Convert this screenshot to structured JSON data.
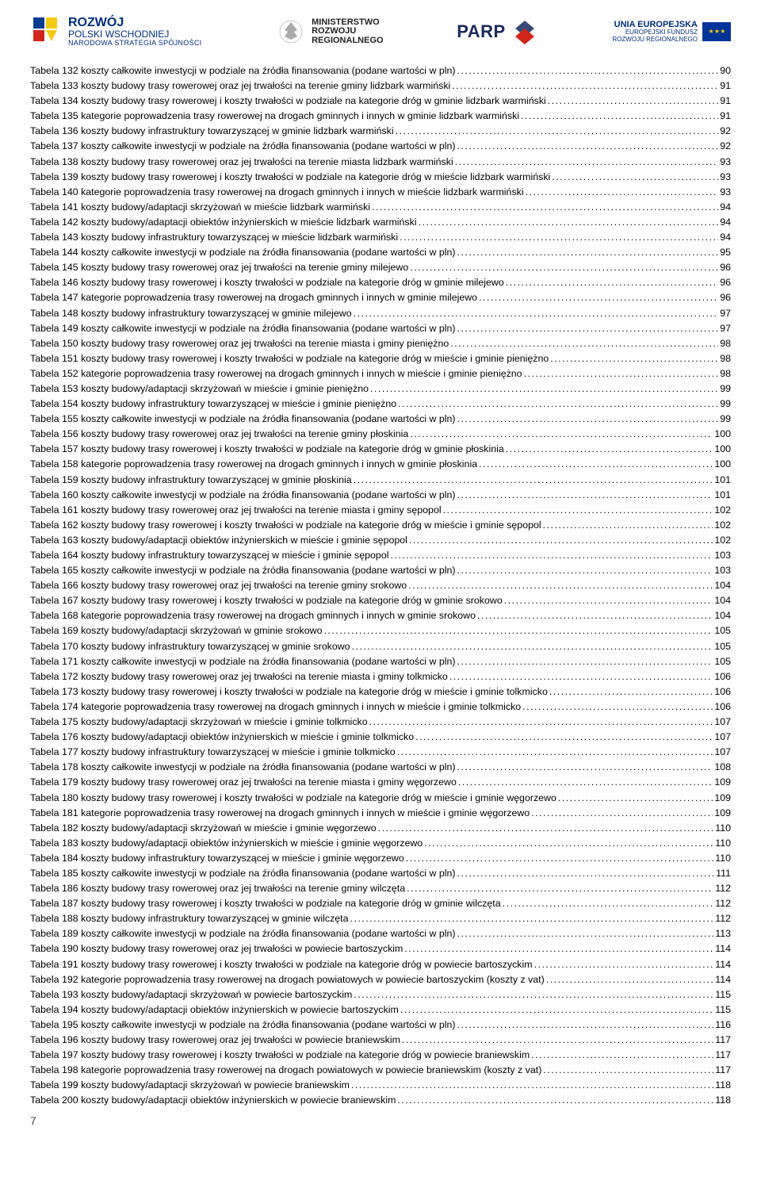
{
  "logos": {
    "rozwoj": {
      "line1": "ROZWÓJ",
      "line2": "POLSKI WSCHODNIEJ",
      "line3": "NARODOWA STRATEGIA SPÓJNOŚCI"
    },
    "ministerstwo": {
      "line1": "MINISTERSTWO",
      "line2": "ROZWOJU",
      "line3": "REGIONALNEGO"
    },
    "parp": "PARP",
    "eu": {
      "line1": "UNIA EUROPEJSKA",
      "line2": "EUROPEJSKI FUNDUSZ",
      "line3": "ROZWOJU REGIONALNEGO"
    }
  },
  "toc": [
    {
      "label": "Tabela 132 koszty całkowite inwestycji w podziale na źródła finansowania (podane wartości w pln)",
      "page": "90"
    },
    {
      "label": "Tabela 133 koszty budowy trasy rowerowej oraz jej trwałości na terenie gminy lidzbark warmiński",
      "page": "91"
    },
    {
      "label": "Tabela 134 koszty budowy trasy rowerowej i koszty trwałości w podziale na kategorie dróg w gminie lidzbark warmiński",
      "page": "91"
    },
    {
      "label": "Tabela 135 kategorie poprowadzenia trasy rowerowej na drogach gminnych i innych w gminie lidzbark warmiński",
      "page": "91"
    },
    {
      "label": "Tabela 136 koszty budowy infrastruktury towarzyszącej w gminie lidzbark warmiński",
      "page": "92"
    },
    {
      "label": "Tabela 137 koszty całkowite inwestycji w podziale na źródła finansowania (podane wartości w pln)",
      "page": "92"
    },
    {
      "label": "Tabela 138 koszty budowy trasy rowerowej oraz jej trwałości na terenie miasta lidzbark warmiński",
      "page": "93"
    },
    {
      "label": "Tabela 139 koszty budowy trasy rowerowej i koszty trwałości w podziale na kategorie dróg w mieście lidzbark warmiński",
      "page": "93"
    },
    {
      "label": "Tabela 140 kategorie poprowadzenia trasy rowerowej na drogach gminnych i innych w mieście lidzbark warmiński",
      "page": "93"
    },
    {
      "label": "Tabela 141 koszty budowy/adaptacji skrzyżowań w mieście lidzbark warmiński",
      "page": "94"
    },
    {
      "label": "Tabela 142 koszty budowy/adaptacji obiektów inżynierskich w mieście lidzbark warmiński",
      "page": "94"
    },
    {
      "label": "Tabela 143 koszty budowy infrastruktury towarzyszącej w mieście lidzbark warmiński",
      "page": "94"
    },
    {
      "label": "Tabela 144 koszty całkowite inwestycji w podziale na źródła finansowania (podane wartości w pln)",
      "page": "95"
    },
    {
      "label": "Tabela 145 koszty budowy trasy rowerowej oraz jej trwałości na terenie gminy milejewo",
      "page": "96"
    },
    {
      "label": "Tabela 146 koszty budowy trasy rowerowej i koszty trwałości w podziale na kategorie dróg w gminie milejewo",
      "page": "96"
    },
    {
      "label": "Tabela 147 kategorie poprowadzenia trasy rowerowej na drogach gminnych i innych w gminie milejewo",
      "page": "96"
    },
    {
      "label": "Tabela 148 koszty budowy infrastruktury towarzyszącej w gminie milejewo",
      "page": "97"
    },
    {
      "label": "Tabela 149 koszty całkowite inwestycji w podziale na źródła finansowania (podane wartości w pln)",
      "page": "97"
    },
    {
      "label": "Tabela 150 koszty budowy trasy rowerowej oraz jej trwałości na terenie miasta i gminy pieniężno",
      "page": "98"
    },
    {
      "label": "Tabela 151 koszty budowy trasy rowerowej i koszty trwałości w podziale na kategorie dróg w mieście i gminie pieniężno",
      "page": "98"
    },
    {
      "label": "Tabela 152 kategorie poprowadzenia trasy rowerowej na drogach gminnych i innych w mieście i gminie pieniężno",
      "page": "98"
    },
    {
      "label": "Tabela 153 koszty budowy/adaptacji skrzyżowań w mieście i gminie pieniężno",
      "page": "99"
    },
    {
      "label": "Tabela 154 koszty budowy infrastruktury towarzyszącej w mieście i gminie pieniężno",
      "page": "99"
    },
    {
      "label": "Tabela 155 koszty całkowite inwestycji w podziale na źródła finansowania (podane wartości w pln)",
      "page": "99"
    },
    {
      "label": "Tabela 156 koszty budowy trasy rowerowej oraz jej trwałości na terenie gminy płoskinia",
      "page": "100"
    },
    {
      "label": "Tabela 157 koszty budowy trasy rowerowej i koszty trwałości w podziale na kategorie dróg w gminie płoskinia",
      "page": "100"
    },
    {
      "label": "Tabela 158 kategorie poprowadzenia trasy rowerowej na drogach gminnych i innych w gminie płoskinia",
      "page": "100"
    },
    {
      "label": "Tabela 159 koszty budowy infrastruktury towarzyszącej w gminie płoskinia",
      "page": "101"
    },
    {
      "label": "Tabela 160 koszty całkowite inwestycji w podziale na źródła finansowania (podane wartości w pln)",
      "page": "101"
    },
    {
      "label": "Tabela 161 koszty budowy trasy rowerowej oraz jej trwałości na terenie miasta i gminy sępopol",
      "page": "102"
    },
    {
      "label": "Tabela 162 koszty budowy trasy rowerowej i koszty trwałości w podziale na kategorie dróg w mieście i gminie sępopol",
      "page": "102"
    },
    {
      "label": "Tabela 163 koszty budowy/adaptacji obiektów inżynierskich w mieście i gminie sępopol",
      "page": "102"
    },
    {
      "label": "Tabela 164 koszty budowy infrastruktury towarzyszącej w mieście i gminie sępopol",
      "page": "103"
    },
    {
      "label": "Tabela 165 koszty całkowite inwestycji w podziale na źródła finansowania (podane wartości w pln)",
      "page": "103"
    },
    {
      "label": "Tabela 166 koszty budowy trasy rowerowej oraz jej trwałości na terenie gminy srokowo",
      "page": "104"
    },
    {
      "label": "Tabela 167 koszty budowy trasy rowerowej i koszty trwałości w podziale na kategorie dróg w gminie srokowo",
      "page": "104"
    },
    {
      "label": "Tabela 168 kategorie poprowadzenia trasy rowerowej na drogach gminnych i innych w gminie srokowo",
      "page": "104"
    },
    {
      "label": "Tabela 169 koszty budowy/adaptacji skrzyżowań w gminie srokowo",
      "page": "105"
    },
    {
      "label": "Tabela 170 koszty budowy infrastruktury towarzyszącej w gminie srokowo",
      "page": "105"
    },
    {
      "label": "Tabela 171 koszty całkowite inwestycji w podziale na źródła finansowania (podane wartości w pln)",
      "page": "105"
    },
    {
      "label": "Tabela 172 koszty budowy trasy rowerowej oraz jej trwałości na terenie miasta i gminy tolkmicko",
      "page": "106"
    },
    {
      "label": "Tabela 173 koszty budowy trasy rowerowej i koszty trwałości w podziale na kategorie dróg w mieście i gminie tolkmicko",
      "page": "106"
    },
    {
      "label": "Tabela 174 kategorie poprowadzenia trasy rowerowej na drogach gminnych i innych w mieście i gminie tolkmicko",
      "page": "106"
    },
    {
      "label": "Tabela 175 koszty budowy/adaptacji skrzyżowań w mieście i gminie tolkmicko",
      "page": "107"
    },
    {
      "label": "Tabela 176 koszty budowy/adaptacji obiektów inżynierskich w mieście i gminie tolkmicko",
      "page": "107"
    },
    {
      "label": "Tabela 177 koszty budowy infrastruktury towarzyszącej w mieście i gminie tolkmicko",
      "page": "107"
    },
    {
      "label": "Tabela 178 koszty całkowite inwestycji w podziale na źródła finansowania (podane wartości w pln)",
      "page": "108"
    },
    {
      "label": "Tabela 179 koszty budowy trasy rowerowej oraz jej trwałości na terenie miasta i gminy węgorzewo",
      "page": "109"
    },
    {
      "label": "Tabela 180 koszty budowy trasy rowerowej i koszty trwałości w podziale na kategorie dróg w mieście i gminie węgorzewo",
      "page": "109"
    },
    {
      "label": "Tabela 181 kategorie poprowadzenia trasy rowerowej na drogach gminnych i innych w mieście i gminie węgorzewo",
      "page": "109"
    },
    {
      "label": "Tabela 182 koszty budowy/adaptacji skrzyżowań w mieście i gminie węgorzewo",
      "page": "110"
    },
    {
      "label": "Tabela 183 koszty budowy/adaptacji obiektów inżynierskich w mieście i gminie węgorzewo",
      "page": "110"
    },
    {
      "label": "Tabela 184 koszty budowy infrastruktury towarzyszącej w mieście i gminie węgorzewo",
      "page": "110"
    },
    {
      "label": "Tabela 185 koszty całkowite inwestycji w podziale na źródła finansowania (podane wartości w pln)",
      "page": "111"
    },
    {
      "label": "Tabela 186 koszty budowy trasy rowerowej oraz jej trwałości na terenie gminy wilczęta",
      "page": "112"
    },
    {
      "label": "Tabela 187 koszty budowy trasy rowerowej i koszty trwałości w podziale na kategorie dróg w gminie wilczęta",
      "page": "112"
    },
    {
      "label": "Tabela 188 koszty budowy infrastruktury towarzyszącej w gminie wilczęta",
      "page": "112"
    },
    {
      "label": "Tabela 189 koszty całkowite inwestycji w podziale na źródła finansowania (podane wartości w pln)",
      "page": "113"
    },
    {
      "label": "Tabela 190 koszty budowy trasy rowerowej oraz jej trwałości w powiecie bartoszyckim",
      "page": "114"
    },
    {
      "label": "Tabela 191 koszty budowy trasy rowerowej i koszty trwałości w podziale na kategorie dróg w powiecie bartoszyckim",
      "page": "114"
    },
    {
      "label": "Tabela 192 kategorie poprowadzenia trasy rowerowej na drogach powiatowych w powiecie bartoszyckim (koszty z vat)",
      "page": "114"
    },
    {
      "label": "Tabela 193 koszty budowy/adaptacji skrzyżowań w powiecie bartoszyckim",
      "page": "115"
    },
    {
      "label": "Tabela 194 koszty budowy/adaptacji obiektów inżynierskich w powiecie bartoszyckim",
      "page": "115"
    },
    {
      "label": "Tabela 195 koszty całkowite inwestycji w podziale na źródła finansowania (podane wartości w pln)",
      "page": "116"
    },
    {
      "label": "Tabela 196 koszty budowy trasy rowerowej oraz jej trwałości w powiecie braniewskim",
      "page": "117"
    },
    {
      "label": "Tabela 197 koszty budowy trasy rowerowej i koszty trwałości w podziale na kategorie dróg w powiecie braniewskim",
      "page": "117"
    },
    {
      "label": "Tabela 198 kategorie poprowadzenia trasy rowerowej na drogach powiatowych w powiecie braniewskim (koszty z vat)",
      "page": "117"
    },
    {
      "label": "Tabela 199 koszty budowy/adaptacji skrzyżowań w powiecie braniewskim",
      "page": "118"
    },
    {
      "label": "Tabela 200 koszty budowy/adaptacji obiektów inżynierskich w powiecie braniewskim",
      "page": "118"
    }
  ],
  "page_number": "7"
}
